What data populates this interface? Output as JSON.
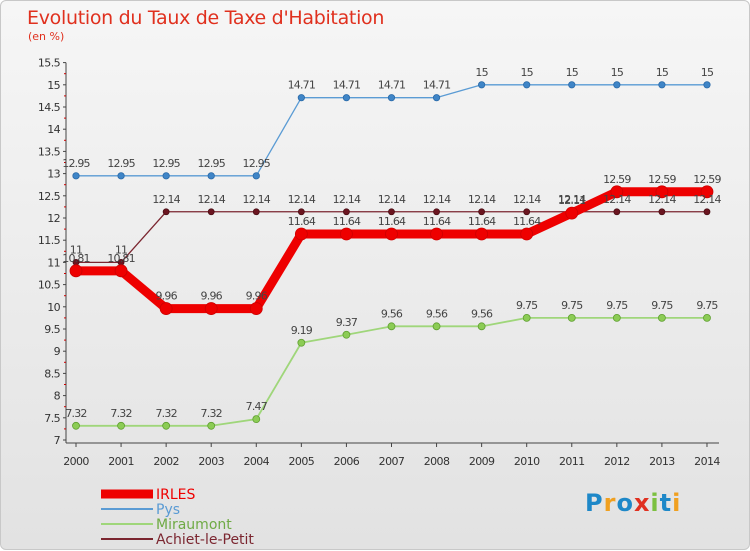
{
  "brand": {
    "letters": [
      {
        "ch": "P",
        "color": "#1e88c8"
      },
      {
        "ch": "r",
        "color": "#f0a020"
      },
      {
        "ch": "o",
        "color": "#1e88c8"
      },
      {
        "ch": "x",
        "color": "#e03020"
      },
      {
        "ch": "i",
        "color": "#7cc040"
      },
      {
        "ch": "t",
        "color": "#1e88c8"
      },
      {
        "ch": "i",
        "color": "#f0a020"
      }
    ]
  },
  "chart_data": {
    "type": "line",
    "title": "Evolution du Taux de Taxe d'Habitation",
    "subtitle": "(en %)",
    "x": [
      "2000",
      "2001",
      "2002",
      "2003",
      "2004",
      "2005",
      "2006",
      "2007",
      "2008",
      "2009",
      "2010",
      "2011",
      "2012",
      "2013",
      "2014"
    ],
    "ylim": [
      7,
      15.5
    ],
    "yticks": [
      "7",
      "7.5",
      "8",
      "8.5",
      "9",
      "9.5",
      "10",
      "10.5",
      "11",
      "11.5",
      "12",
      "12.5",
      "13",
      "13.5",
      "14",
      "14.5",
      "15",
      "15.5"
    ],
    "grid": false,
    "legend_position": "bottom-left",
    "series": [
      {
        "name": "IRLES",
        "color": "#ee0000",
        "values": [
          10.81,
          10.81,
          9.96,
          9.96,
          9.96,
          11.64,
          11.64,
          11.64,
          11.64,
          11.64,
          11.64,
          12.11,
          12.59,
          12.59,
          12.59
        ],
        "labels": [
          "10.81",
          "10.81",
          "9.96",
          "9.96",
          "9.96",
          "11.64",
          "11.64",
          "11.64",
          "11.64",
          "11.64",
          "11.64",
          "12.11",
          "12.59",
          "12.59",
          "12.59"
        ]
      },
      {
        "name": "Pys",
        "color": "#5a9bd4",
        "values": [
          12.95,
          12.95,
          12.95,
          12.95,
          12.95,
          14.71,
          14.71,
          14.71,
          14.71,
          15,
          15,
          15,
          15,
          15,
          15
        ],
        "labels": [
          "12.95",
          "12.95",
          "12.95",
          "12.95",
          "12.95",
          "14.71",
          "14.71",
          "14.71",
          "14.71",
          "15",
          "15",
          "15",
          "15",
          "15",
          "15"
        ]
      },
      {
        "name": "Miraumont",
        "color": "#9fd67a",
        "values": [
          7.32,
          7.32,
          7.32,
          7.32,
          7.47,
          9.19,
          9.37,
          9.56,
          9.56,
          9.56,
          9.75,
          9.75,
          9.75,
          9.75,
          9.75
        ],
        "labels": [
          "7.32",
          "7.32",
          "7.32",
          "7.32",
          "7.47",
          "9.19",
          "9.37",
          "9.56",
          "9.56",
          "9.56",
          "9.75",
          "9.75",
          "9.75",
          "9.75",
          "9.75"
        ]
      },
      {
        "name": "Achiet-le-Petit",
        "color": "#7b2630",
        "values": [
          11,
          11,
          12.14,
          12.14,
          12.14,
          12.14,
          12.14,
          12.14,
          12.14,
          12.14,
          12.14,
          12.14,
          12.14,
          12.14,
          12.14
        ],
        "labels": [
          "11",
          "11",
          "12.14",
          "12.14",
          "12.14",
          "12.14",
          "12.14",
          "12.14",
          "12.14",
          "12.14",
          "12.14",
          "12.14",
          "12.14",
          "12.14",
          "12.14"
        ]
      }
    ]
  }
}
